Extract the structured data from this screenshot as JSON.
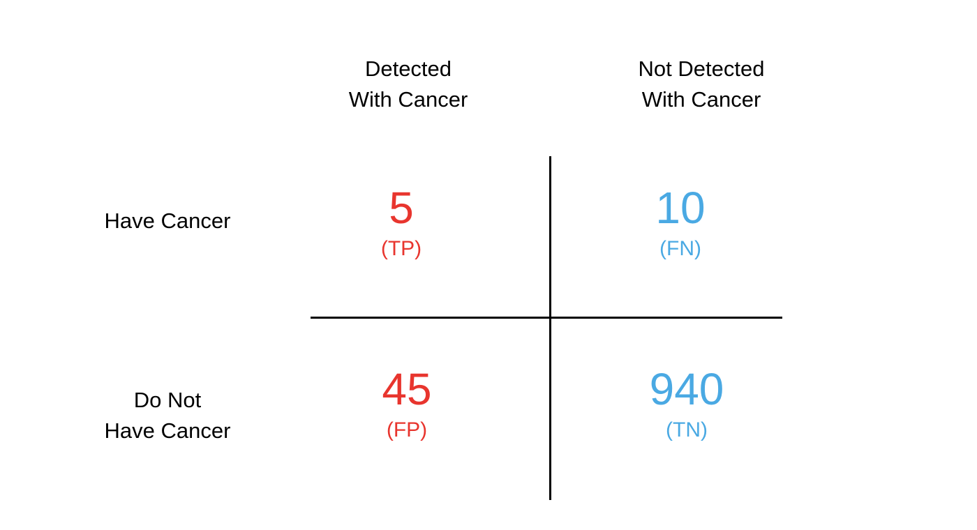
{
  "column_headers": [
    {
      "line1": "Detected",
      "line2": "With Cancer"
    },
    {
      "line1": "Not Detected",
      "line2": "With Cancer"
    }
  ],
  "row_headers": [
    {
      "line1": "Have Cancer"
    },
    {
      "line1": "Do Not",
      "line2": "Have Cancer"
    }
  ],
  "cells": {
    "tp": {
      "value": "5",
      "code": "(TP)"
    },
    "fn": {
      "value": "10",
      "code": "(FN)"
    },
    "fp": {
      "value": "45",
      "code": "(FP)"
    },
    "tn": {
      "value": "940",
      "code": "(TN)"
    }
  },
  "colors": {
    "detected": "#e8352e",
    "not_detected": "#4aa9e3",
    "text": "#000000",
    "divider": "#000000"
  }
}
